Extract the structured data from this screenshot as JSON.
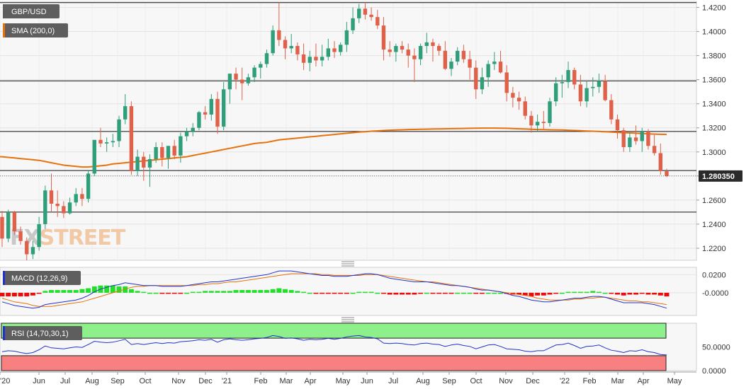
{
  "chart_data": [
    {
      "type": "candlestick",
      "symbol_label": "GBP/USD",
      "sma_label": "SMA (200,0)",
      "current_price_label": "1.280350",
      "ylim": [
        1.21,
        1.425
      ],
      "yticks": [
        "1.4200",
        "1.4000",
        "1.3800",
        "1.3600",
        "1.3400",
        "1.3200",
        "1.3000",
        "1.2800",
        "1.2600",
        "1.2400",
        "1.2200"
      ],
      "x_tick_labels": [
        "'20",
        "Jun",
        "Jul",
        "Aug",
        "Sep",
        "Oct",
        "Nov",
        "Dec",
        "'21",
        "Feb",
        "Mar",
        "Apr",
        "May",
        "Jun",
        "Jul",
        "Aug",
        "Sep",
        "Oct",
        "Nov",
        "Dec",
        "'22",
        "Feb",
        "Mar",
        "Apr",
        "May"
      ],
      "horizontal_levels": [
        1.424,
        1.359,
        1.317,
        1.2845,
        1.25
      ],
      "candles": [
        [
          1.246,
          1.251,
          1.221,
          1.228
        ],
        [
          1.228,
          1.252,
          1.225,
          1.25
        ],
        [
          1.25,
          1.251,
          1.231,
          1.234
        ],
        [
          1.234,
          1.238,
          1.223,
          1.226
        ],
        [
          1.226,
          1.229,
          1.21,
          1.215
        ],
        [
          1.215,
          1.226,
          1.211,
          1.221
        ],
        [
          1.221,
          1.246,
          1.218,
          1.24
        ],
        [
          1.24,
          1.272,
          1.236,
          1.268
        ],
        [
          1.268,
          1.282,
          1.25,
          1.257
        ],
        [
          1.257,
          1.268,
          1.246,
          1.255
        ],
        [
          1.255,
          1.259,
          1.245,
          1.249
        ],
        [
          1.249,
          1.262,
          1.248,
          1.258
        ],
        [
          1.258,
          1.27,
          1.255,
          1.265
        ],
        [
          1.265,
          1.27,
          1.255,
          1.261
        ],
        [
          1.261,
          1.285,
          1.258,
          1.282
        ],
        [
          1.282,
          1.31,
          1.28,
          1.31
        ],
        [
          1.31,
          1.32,
          1.304,
          1.307
        ],
        [
          1.307,
          1.312,
          1.3,
          1.308
        ],
        [
          1.308,
          1.315,
          1.304,
          1.309
        ],
        [
          1.309,
          1.33,
          1.304,
          1.327
        ],
        [
          1.327,
          1.348,
          1.323,
          1.338
        ],
        [
          1.338,
          1.342,
          1.281,
          1.284
        ],
        [
          1.284,
          1.302,
          1.28,
          1.296
        ],
        [
          1.296,
          1.3,
          1.276,
          1.287
        ],
        [
          1.287,
          1.298,
          1.271,
          1.294
        ],
        [
          1.294,
          1.308,
          1.291,
          1.304
        ],
        [
          1.304,
          1.308,
          1.288,
          1.295
        ],
        [
          1.295,
          1.305,
          1.286,
          1.305
        ],
        [
          1.305,
          1.31,
          1.294,
          1.297
        ],
        [
          1.297,
          1.316,
          1.291,
          1.313
        ],
        [
          1.313,
          1.32,
          1.309,
          1.317
        ],
        [
          1.317,
          1.324,
          1.313,
          1.32
        ],
        [
          1.32,
          1.334,
          1.318,
          1.333
        ],
        [
          1.333,
          1.338,
          1.327,
          1.331
        ],
        [
          1.331,
          1.348,
          1.326,
          1.344
        ],
        [
          1.344,
          1.35,
          1.315,
          1.321
        ],
        [
          1.321,
          1.358,
          1.318,
          1.352
        ],
        [
          1.352,
          1.365,
          1.34,
          1.365
        ],
        [
          1.365,
          1.37,
          1.352,
          1.36
        ],
        [
          1.36,
          1.37,
          1.343,
          1.357
        ],
        [
          1.357,
          1.365,
          1.355,
          1.362
        ],
        [
          1.362,
          1.372,
          1.358,
          1.37
        ],
        [
          1.37,
          1.375,
          1.361,
          1.373
        ],
        [
          1.373,
          1.385,
          1.37,
          1.382
        ],
        [
          1.382,
          1.405,
          1.38,
          1.401
        ],
        [
          1.401,
          1.424,
          1.388,
          1.393
        ],
        [
          1.393,
          1.396,
          1.377,
          1.386
        ],
        [
          1.386,
          1.398,
          1.382,
          1.388
        ],
        [
          1.388,
          1.391,
          1.376,
          1.381
        ],
        [
          1.381,
          1.39,
          1.368,
          1.374
        ],
        [
          1.374,
          1.384,
          1.367,
          1.379
        ],
        [
          1.379,
          1.39,
          1.371,
          1.376
        ],
        [
          1.376,
          1.389,
          1.371,
          1.379
        ],
        [
          1.379,
          1.394,
          1.376,
          1.386
        ],
        [
          1.386,
          1.392,
          1.378,
          1.383
        ],
        [
          1.383,
          1.391,
          1.38,
          1.389
        ],
        [
          1.389,
          1.408,
          1.383,
          1.401
        ],
        [
          1.401,
          1.42,
          1.398,
          1.411
        ],
        [
          1.411,
          1.423,
          1.407,
          1.419
        ],
        [
          1.419,
          1.424,
          1.41,
          1.414
        ],
        [
          1.414,
          1.42,
          1.409,
          1.412
        ],
        [
          1.412,
          1.418,
          1.402,
          1.405
        ],
        [
          1.405,
          1.412,
          1.376,
          1.385
        ],
        [
          1.385,
          1.392,
          1.379,
          1.383
        ],
        [
          1.383,
          1.39,
          1.375,
          1.388
        ],
        [
          1.388,
          1.392,
          1.382,
          1.385
        ],
        [
          1.385,
          1.39,
          1.37,
          1.38
        ],
        [
          1.38,
          1.386,
          1.358,
          1.377
        ],
        [
          1.377,
          1.39,
          1.372,
          1.388
        ],
        [
          1.388,
          1.399,
          1.382,
          1.391
        ],
        [
          1.391,
          1.394,
          1.375,
          1.388
        ],
        [
          1.388,
          1.39,
          1.38,
          1.384
        ],
        [
          1.384,
          1.392,
          1.368,
          1.369
        ],
        [
          1.369,
          1.378,
          1.363,
          1.375
        ],
        [
          1.375,
          1.387,
          1.372,
          1.384
        ],
        [
          1.384,
          1.389,
          1.374,
          1.377
        ],
        [
          1.377,
          1.384,
          1.36,
          1.37
        ],
        [
          1.37,
          1.376,
          1.344,
          1.352
        ],
        [
          1.352,
          1.37,
          1.348,
          1.362
        ],
        [
          1.362,
          1.376,
          1.354,
          1.373
        ],
        [
          1.373,
          1.383,
          1.368,
          1.375
        ],
        [
          1.375,
          1.384,
          1.365,
          1.366
        ],
        [
          1.366,
          1.372,
          1.342,
          1.349
        ],
        [
          1.349,
          1.354,
          1.337,
          1.345
        ],
        [
          1.345,
          1.35,
          1.335,
          1.342
        ],
        [
          1.342,
          1.346,
          1.327,
          1.33
        ],
        [
          1.33,
          1.334,
          1.316,
          1.322
        ],
        [
          1.322,
          1.331,
          1.317,
          1.325
        ],
        [
          1.325,
          1.334,
          1.319,
          1.324
        ],
        [
          1.324,
          1.345,
          1.321,
          1.342
        ],
        [
          1.342,
          1.362,
          1.338,
          1.357
        ],
        [
          1.357,
          1.364,
          1.345,
          1.358
        ],
        [
          1.358,
          1.375,
          1.353,
          1.368
        ],
        [
          1.368,
          1.37,
          1.352,
          1.356
        ],
        [
          1.356,
          1.364,
          1.338,
          1.342
        ],
        [
          1.342,
          1.359,
          1.337,
          1.353
        ],
        [
          1.353,
          1.362,
          1.346,
          1.354
        ],
        [
          1.354,
          1.365,
          1.349,
          1.359
        ],
        [
          1.359,
          1.364,
          1.342,
          1.343
        ],
        [
          1.343,
          1.348,
          1.323,
          1.327
        ],
        [
          1.327,
          1.331,
          1.311,
          1.318
        ],
        [
          1.318,
          1.32,
          1.3,
          1.304
        ],
        [
          1.304,
          1.316,
          1.3,
          1.312
        ],
        [
          1.312,
          1.322,
          1.306,
          1.309
        ],
        [
          1.309,
          1.32,
          1.3,
          1.317
        ],
        [
          1.317,
          1.319,
          1.302,
          1.305
        ],
        [
          1.305,
          1.314,
          1.297,
          1.299
        ],
        [
          1.299,
          1.307,
          1.281,
          1.284
        ],
        [
          1.284,
          1.286,
          1.279,
          1.28
        ]
      ],
      "sma": [
        1.296,
        1.2955,
        1.295,
        1.2945,
        1.294,
        1.2935,
        1.293,
        1.292,
        1.291,
        1.29,
        1.289,
        1.2885,
        1.288,
        1.2875,
        1.2875,
        1.288,
        1.2885,
        1.289,
        1.29,
        1.2905,
        1.291,
        1.2915,
        1.292,
        1.2925,
        1.293,
        1.2935,
        1.294,
        1.2945,
        1.295,
        1.2955,
        1.296,
        1.297,
        1.298,
        1.299,
        1.3,
        1.301,
        1.302,
        1.303,
        1.304,
        1.305,
        1.306,
        1.307,
        1.3075,
        1.308,
        1.309,
        1.31,
        1.3105,
        1.311,
        1.3115,
        1.312,
        1.3125,
        1.313,
        1.3135,
        1.314,
        1.3145,
        1.315,
        1.3155,
        1.316,
        1.3165,
        1.3168,
        1.3172,
        1.3175,
        1.3178,
        1.318,
        1.3182,
        1.3184,
        1.3186,
        1.3187,
        1.3188,
        1.3189,
        1.319,
        1.3191,
        1.3192,
        1.3193,
        1.3194,
        1.3195,
        1.3196,
        1.3197,
        1.3198,
        1.3198,
        1.3198,
        1.3197,
        1.3196,
        1.3194,
        1.3192,
        1.319,
        1.3188,
        1.3186,
        1.3185,
        1.3184,
        1.3183,
        1.3182,
        1.318,
        1.3178,
        1.3176,
        1.3174,
        1.3172,
        1.317,
        1.3168,
        1.3165,
        1.3162,
        1.316,
        1.3158,
        1.3155,
        1.3153,
        1.315,
        1.3148,
        1.3146,
        1.3145
      ],
      "watermark": "FXSTREET"
    },
    {
      "type": "line",
      "label": "MACD (12,26,9)",
      "ylim": [
        -0.025,
        0.028
      ],
      "yticks": [
        "0.0200",
        "-0.0000"
      ],
      "macd": [
        -0.01,
        -0.012,
        -0.014,
        -0.015,
        -0.016,
        -0.017,
        -0.016,
        -0.013,
        -0.012,
        -0.011,
        -0.01,
        -0.009,
        -0.008,
        -0.006,
        -0.003,
        0.001,
        0.004,
        0.006,
        0.008,
        0.009,
        0.011,
        0.01,
        0.009,
        0.008,
        0.008,
        0.008,
        0.007,
        0.007,
        0.007,
        0.007,
        0.008,
        0.009,
        0.01,
        0.011,
        0.012,
        0.012,
        0.013,
        0.014,
        0.015,
        0.016,
        0.017,
        0.018,
        0.019,
        0.02,
        0.022,
        0.024,
        0.024,
        0.024,
        0.023,
        0.022,
        0.021,
        0.02,
        0.019,
        0.019,
        0.018,
        0.018,
        0.018,
        0.019,
        0.02,
        0.021,
        0.021,
        0.02,
        0.018,
        0.016,
        0.015,
        0.014,
        0.013,
        0.012,
        0.012,
        0.012,
        0.011,
        0.01,
        0.009,
        0.008,
        0.008,
        0.007,
        0.006,
        0.004,
        0.003,
        0.003,
        0.002,
        0.001,
        -0.001,
        -0.003,
        -0.004,
        -0.006,
        -0.008,
        -0.009,
        -0.01,
        -0.01,
        -0.009,
        -0.008,
        -0.007,
        -0.006,
        -0.006,
        -0.005,
        -0.004,
        -0.004,
        -0.005,
        -0.007,
        -0.009,
        -0.011,
        -0.011,
        -0.011,
        -0.011,
        -0.012,
        -0.013,
        -0.015,
        -0.017
      ],
      "signal": [
        -0.006,
        -0.008,
        -0.01,
        -0.011,
        -0.012,
        -0.014,
        -0.015,
        -0.015,
        -0.015,
        -0.014,
        -0.013,
        -0.012,
        -0.011,
        -0.01,
        -0.008,
        -0.006,
        -0.004,
        -0.002,
        0.0,
        0.002,
        0.004,
        0.006,
        0.007,
        0.007,
        0.008,
        0.008,
        0.008,
        0.008,
        0.008,
        0.008,
        0.008,
        0.008,
        0.009,
        0.009,
        0.01,
        0.01,
        0.011,
        0.012,
        0.012,
        0.013,
        0.014,
        0.015,
        0.016,
        0.017,
        0.018,
        0.019,
        0.02,
        0.021,
        0.021,
        0.021,
        0.021,
        0.021,
        0.02,
        0.02,
        0.019,
        0.019,
        0.019,
        0.019,
        0.019,
        0.02,
        0.02,
        0.02,
        0.019,
        0.018,
        0.017,
        0.016,
        0.015,
        0.014,
        0.013,
        0.012,
        0.012,
        0.011,
        0.01,
        0.009,
        0.008,
        0.007,
        0.006,
        0.005,
        0.004,
        0.003,
        0.002,
        0.001,
        0.0,
        -0.001,
        -0.002,
        -0.003,
        -0.004,
        -0.006,
        -0.007,
        -0.008,
        -0.008,
        -0.008,
        -0.008,
        -0.007,
        -0.007,
        -0.006,
        -0.006,
        -0.005,
        -0.005,
        -0.006,
        -0.007,
        -0.008,
        -0.009,
        -0.009,
        -0.01,
        -0.01,
        -0.011,
        -0.012,
        -0.013
      ],
      "hist": [
        -0.004,
        -0.004,
        -0.004,
        -0.004,
        -0.004,
        -0.003,
        -0.001,
        0.002,
        0.003,
        0.003,
        0.003,
        0.003,
        0.003,
        0.004,
        0.005,
        0.007,
        0.008,
        0.008,
        0.008,
        0.007,
        0.007,
        0.004,
        0.002,
        0.001,
        0.0,
        0.0,
        -0.001,
        -0.001,
        -0.001,
        -0.001,
        0.0,
        0.001,
        0.001,
        0.002,
        0.002,
        0.002,
        0.002,
        0.002,
        0.003,
        0.003,
        0.003,
        0.003,
        0.003,
        0.003,
        0.004,
        0.005,
        0.004,
        0.003,
        0.002,
        0.001,
        0.0,
        -0.001,
        -0.001,
        -0.001,
        -0.001,
        -0.001,
        -0.001,
        0.0,
        0.001,
        0.001,
        0.001,
        0.0,
        -0.001,
        -0.002,
        -0.002,
        -0.002,
        -0.002,
        -0.002,
        -0.001,
        0.0,
        -0.001,
        -0.001,
        -0.001,
        -0.001,
        0.0,
        0.0,
        0.0,
        -0.001,
        -0.001,
        0.0,
        0.0,
        0.0,
        -0.001,
        -0.002,
        -0.002,
        -0.003,
        -0.004,
        -0.003,
        -0.003,
        -0.002,
        -0.001,
        0.0,
        0.001,
        0.001,
        0.001,
        0.001,
        0.002,
        0.001,
        0.0,
        -0.001,
        -0.002,
        -0.003,
        -0.002,
        -0.002,
        -0.001,
        -0.002,
        -0.002,
        -0.003,
        -0.004
      ]
    },
    {
      "type": "line",
      "label": "RSI (14,70,30,1)",
      "ylim": [
        0,
        100
      ],
      "yticks": [
        "50.0000",
        "0.0000"
      ],
      "bands": [
        30,
        70
      ],
      "values": [
        40,
        42,
        41,
        38,
        36,
        38,
        44,
        52,
        48,
        47,
        46,
        48,
        50,
        49,
        55,
        62,
        60,
        59,
        60,
        63,
        66,
        55,
        57,
        55,
        57,
        59,
        57,
        59,
        58,
        61,
        62,
        63,
        65,
        64,
        66,
        60,
        65,
        67,
        65,
        64,
        65,
        67,
        68,
        70,
        74,
        72,
        68,
        69,
        67,
        64,
        66,
        65,
        66,
        68,
        66,
        68,
        71,
        73,
        74,
        71,
        70,
        67,
        58,
        57,
        58,
        57,
        55,
        54,
        57,
        58,
        56,
        55,
        51,
        54,
        56,
        53,
        51,
        46,
        50,
        54,
        55,
        51,
        46,
        45,
        44,
        41,
        40,
        42,
        42,
        48,
        54,
        55,
        58,
        53,
        47,
        51,
        52,
        54,
        48,
        43,
        41,
        38,
        42,
        41,
        44,
        40,
        38,
        34,
        33
      ]
    }
  ]
}
